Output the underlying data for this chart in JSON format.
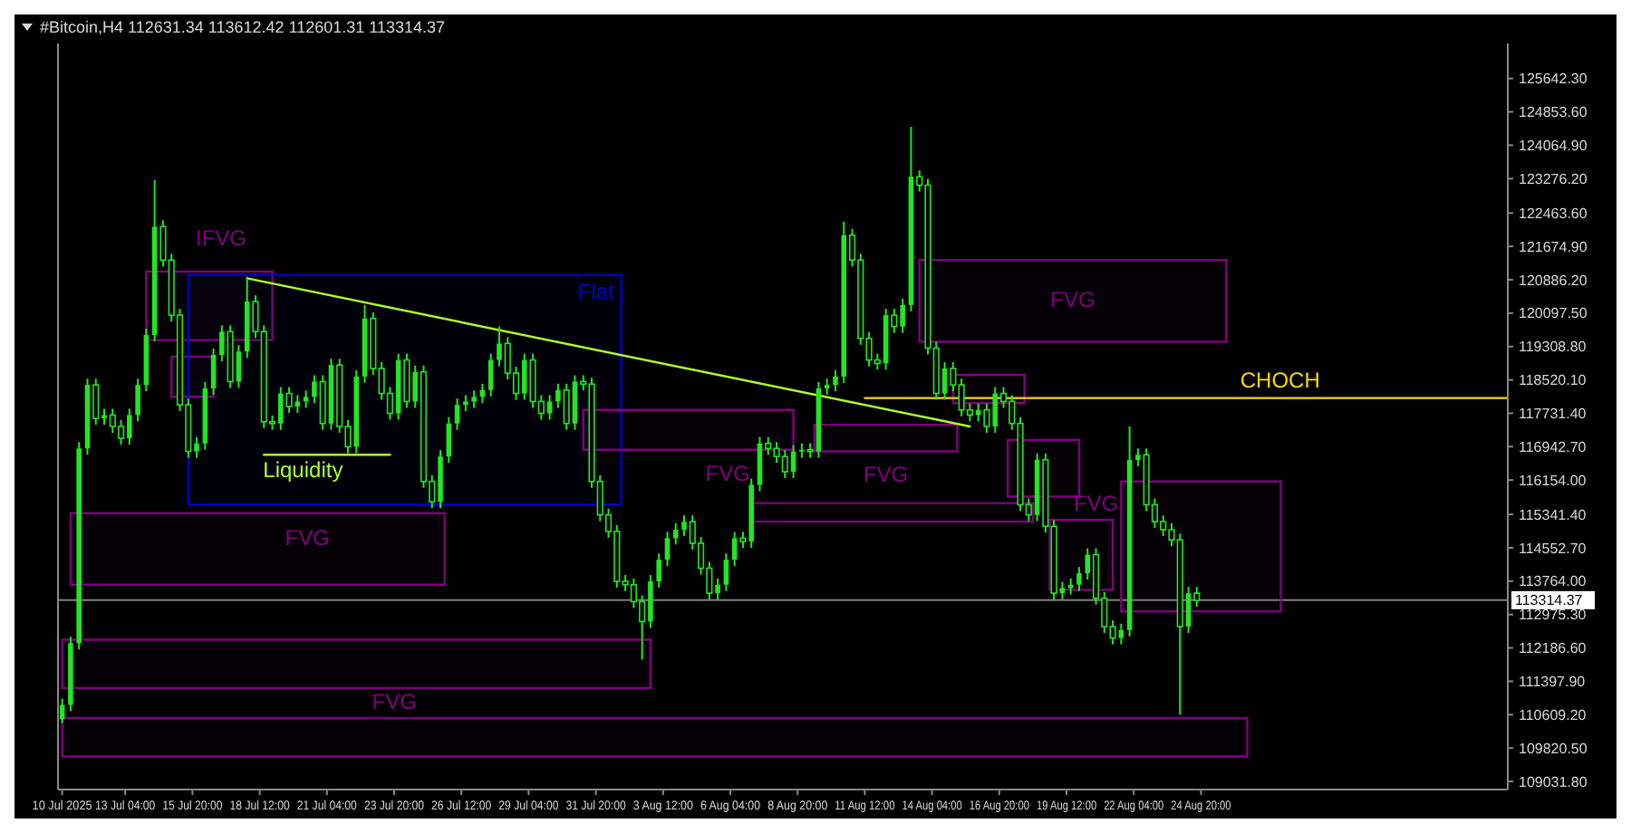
{
  "chart_data": {
    "type": "candlestick",
    "title": "#Bitcoin,H4  112631.34 113612.42 112601.31 113314.37",
    "color": "#22e622",
    "xlim": [
      "2025-07-10T12:00",
      "2025-09-06T00:00"
    ],
    "ylim": [
      108840,
      126470
    ],
    "xticks": [
      {
        "value": "2025-07-10T16:00",
        "label": "10 Jul 2025"
      },
      {
        "value": "2025-07-13T04:00",
        "label": "13 Jul 04:00"
      },
      {
        "value": "2025-07-15T20:00",
        "label": "15 Jul 20:00"
      },
      {
        "value": "2025-07-18T12:00",
        "label": "18 Jul 12:00"
      },
      {
        "value": "2025-07-21T04:00",
        "label": "21 Jul 04:00"
      },
      {
        "value": "2025-07-23T20:00",
        "label": "23 Jul 20:00"
      },
      {
        "value": "2025-07-26T12:00",
        "label": "26 Jul 12:00"
      },
      {
        "value": "2025-07-29T04:00",
        "label": "29 Jul 04:00"
      },
      {
        "value": "2025-07-31T20:00",
        "label": "31 Jul 20:00"
      },
      {
        "value": "2025-08-03T12:00",
        "label": "3 Aug 12:00"
      },
      {
        "value": "2025-08-06T04:00",
        "label": "6 Aug 04:00"
      },
      {
        "value": "2025-08-08T20:00",
        "label": "8 Aug 20:00"
      },
      {
        "value": "2025-08-11T12:00",
        "label": "11 Aug 12:00"
      },
      {
        "value": "2025-08-14T04:00",
        "label": "14 Aug 04:00"
      },
      {
        "value": "2025-08-16T20:00",
        "label": "16 Aug 20:00"
      },
      {
        "value": "2025-08-19T12:00",
        "label": "19 Aug 12:00"
      },
      {
        "value": "2025-08-22T04:00",
        "label": "22 Aug 04:00"
      },
      {
        "value": "2025-08-24T20:00",
        "label": "24 Aug 20:00"
      }
    ],
    "yticks": [
      {
        "value": 125642.3,
        "label": "125642.30"
      },
      {
        "value": 124853.6,
        "label": "124853.60"
      },
      {
        "value": 124064.9,
        "label": "124064.90"
      },
      {
        "value": 123276.2,
        "label": "123276.20"
      },
      {
        "value": 122463.6,
        "label": "122463.60"
      },
      {
        "value": 121674.9,
        "label": "121674.90"
      },
      {
        "value": 120886.2,
        "label": "120886.20"
      },
      {
        "value": 120097.5,
        "label": "120097.50"
      },
      {
        "value": 119308.8,
        "label": "119308.80"
      },
      {
        "value": 118520.1,
        "label": "118520.10"
      },
      {
        "value": 117731.4,
        "label": "117731.40"
      },
      {
        "value": 116942.7,
        "label": "116942.70"
      },
      {
        "value": 116154,
        "label": "116154.00"
      },
      {
        "value": 115341.4,
        "label": "115341.40"
      },
      {
        "value": 114552.7,
        "label": "114552.70"
      },
      {
        "value": 113764,
        "label": "113764.00"
      },
      {
        "value": 112975.3,
        "label": "112975.30"
      },
      {
        "value": 112186.6,
        "label": "112186.60"
      },
      {
        "value": 111397.9,
        "label": "111397.90"
      },
      {
        "value": 110609.2,
        "label": "110609.20"
      },
      {
        "value": 109820.5,
        "label": "109820.50"
      },
      {
        "value": 109031.8,
        "label": "109031.80"
      }
    ],
    "x": [
      "2025-07-10T16:00",
      "2025-07-11T00:00",
      "2025-07-11T08:00",
      "2025-07-11T16:00",
      "2025-07-12T00:00",
      "2025-07-12T08:00",
      "2025-07-12T16:00",
      "2025-07-13T00:00",
      "2025-07-13T08:00",
      "2025-07-13T16:00",
      "2025-07-14T00:00",
      "2025-07-14T08:00",
      "2025-07-14T16:00",
      "2025-07-15T00:00",
      "2025-07-15T08:00",
      "2025-07-15T16:00",
      "2025-07-16T00:00",
      "2025-07-16T08:00",
      "2025-07-16T16:00",
      "2025-07-17T00:00",
      "2025-07-17T08:00",
      "2025-07-17T16:00",
      "2025-07-18T00:00",
      "2025-07-18T08:00",
      "2025-07-18T16:00",
      "2025-07-19T00:00",
      "2025-07-19T08:00",
      "2025-07-19T16:00",
      "2025-07-20T00:00",
      "2025-07-20T08:00",
      "2025-07-20T16:00",
      "2025-07-21T00:00",
      "2025-07-21T08:00",
      "2025-07-21T16:00",
      "2025-07-22T00:00",
      "2025-07-22T08:00",
      "2025-07-22T16:00",
      "2025-07-23T00:00",
      "2025-07-23T08:00",
      "2025-07-23T16:00",
      "2025-07-24T00:00",
      "2025-07-24T08:00",
      "2025-07-24T16:00",
      "2025-07-25T00:00",
      "2025-07-25T08:00",
      "2025-07-25T16:00",
      "2025-07-26T00:00",
      "2025-07-26T08:00",
      "2025-07-26T16:00",
      "2025-07-27T00:00",
      "2025-07-27T08:00",
      "2025-07-27T16:00",
      "2025-07-28T00:00",
      "2025-07-28T08:00",
      "2025-07-28T16:00",
      "2025-07-29T00:00",
      "2025-07-29T08:00",
      "2025-07-29T16:00",
      "2025-07-30T00:00",
      "2025-07-30T08:00",
      "2025-07-30T16:00",
      "2025-07-31T00:00",
      "2025-07-31T08:00",
      "2025-07-31T16:00",
      "2025-08-01T00:00",
      "2025-08-01T08:00",
      "2025-08-01T16:00",
      "2025-08-02T00:00",
      "2025-08-02T08:00",
      "2025-08-02T16:00",
      "2025-08-03T00:00",
      "2025-08-03T08:00",
      "2025-08-03T16:00",
      "2025-08-04T00:00",
      "2025-08-04T08:00",
      "2025-08-04T16:00",
      "2025-08-05T00:00",
      "2025-08-05T08:00",
      "2025-08-05T16:00",
      "2025-08-06T00:00",
      "2025-08-06T08:00",
      "2025-08-06T16:00",
      "2025-08-07T00:00",
      "2025-08-07T08:00",
      "2025-08-07T16:00",
      "2025-08-08T00:00",
      "2025-08-08T08:00",
      "2025-08-08T16:00",
      "2025-08-09T00:00",
      "2025-08-09T08:00",
      "2025-08-09T16:00",
      "2025-08-10T00:00",
      "2025-08-10T08:00",
      "2025-08-10T16:00",
      "2025-08-11T00:00",
      "2025-08-11T08:00",
      "2025-08-11T16:00",
      "2025-08-12T00:00",
      "2025-08-12T08:00",
      "2025-08-12T16:00",
      "2025-08-13T00:00",
      "2025-08-13T08:00",
      "2025-08-13T16:00",
      "2025-08-14T00:00",
      "2025-08-14T08:00",
      "2025-08-14T16:00",
      "2025-08-15T00:00",
      "2025-08-15T08:00",
      "2025-08-15T16:00",
      "2025-08-16T00:00",
      "2025-08-16T08:00",
      "2025-08-16T16:00",
      "2025-08-17T00:00",
      "2025-08-17T08:00",
      "2025-08-17T16:00",
      "2025-08-18T00:00",
      "2025-08-18T08:00",
      "2025-08-18T16:00",
      "2025-08-19T00:00",
      "2025-08-19T08:00",
      "2025-08-19T16:00",
      "2025-08-20T00:00",
      "2025-08-20T08:00",
      "2025-08-20T16:00",
      "2025-08-21T00:00",
      "2025-08-21T08:00",
      "2025-08-21T16:00",
      "2025-08-22T00:00",
      "2025-08-22T08:00",
      "2025-08-22T16:00",
      "2025-08-23T00:00",
      "2025-08-23T08:00",
      "2025-08-23T16:00",
      "2025-08-24T00:00",
      "2025-08-24T08:00",
      "2025-08-24T16:00"
    ],
    "ohlc": [
      [
        110500,
        110990,
        110410,
        110840
      ],
      [
        110840,
        112450,
        110690,
        112300
      ],
      [
        112300,
        117050,
        112150,
        116900
      ],
      [
        116900,
        118550,
        116750,
        118400
      ],
      [
        118400,
        118550,
        117460,
        117610
      ],
      [
        117610,
        117840,
        117460,
        117690
      ],
      [
        117690,
        117840,
        117270,
        117420
      ],
      [
        117420,
        117570,
        116990,
        117140
      ],
      [
        117140,
        117840,
        116990,
        117690
      ],
      [
        117690,
        118550,
        117540,
        118400
      ],
      [
        118400,
        119730,
        118250,
        119580
      ],
      [
        119580,
        123240,
        119430,
        122140
      ],
      [
        122140,
        122290,
        121200,
        121350
      ],
      [
        121350,
        121500,
        119900,
        120050
      ],
      [
        120050,
        120200,
        117780,
        117930
      ],
      [
        117930,
        118080,
        116680,
        116830
      ],
      [
        116830,
        117170,
        116680,
        117020
      ],
      [
        117020,
        118470,
        116870,
        118320
      ],
      [
        118320,
        119260,
        118170,
        119110
      ],
      [
        119110,
        119810,
        118960,
        119660
      ],
      [
        119660,
        119810,
        118330,
        118480
      ],
      [
        118480,
        119340,
        118330,
        119190
      ],
      [
        119190,
        120960,
        119040,
        120370
      ],
      [
        120370,
        120520,
        119510,
        119660
      ],
      [
        119660,
        119810,
        117380,
        117530
      ],
      [
        117530,
        117680,
        117340,
        117490
      ],
      [
        117490,
        118350,
        117340,
        118200
      ],
      [
        118200,
        118350,
        117740,
        117890
      ],
      [
        117890,
        118160,
        117740,
        118010
      ],
      [
        118010,
        118270,
        117860,
        118120
      ],
      [
        118120,
        118630,
        117970,
        118480
      ],
      [
        118480,
        118630,
        117340,
        117490
      ],
      [
        117490,
        119020,
        117340,
        118870
      ],
      [
        118870,
        119020,
        117270,
        117420
      ],
      [
        117420,
        117570,
        116790,
        116940
      ],
      [
        116940,
        118750,
        116790,
        118600
      ],
      [
        118600,
        120290,
        118450,
        119970
      ],
      [
        119970,
        120120,
        118640,
        118790
      ],
      [
        118790,
        118940,
        118050,
        118200
      ],
      [
        118200,
        118350,
        117580,
        117730
      ],
      [
        117730,
        119140,
        117580,
        118990
      ],
      [
        118990,
        119140,
        117860,
        118010
      ],
      [
        118010,
        118860,
        117860,
        118710
      ],
      [
        118710,
        118860,
        115970,
        116120
      ],
      [
        116120,
        116270,
        115490,
        115640
      ],
      [
        115640,
        116860,
        115490,
        116710
      ],
      [
        116710,
        117640,
        116560,
        117490
      ],
      [
        117490,
        118080,
        117340,
        117930
      ],
      [
        117930,
        118160,
        117780,
        118010
      ],
      [
        118010,
        118270,
        117860,
        118120
      ],
      [
        118120,
        118430,
        117970,
        118280
      ],
      [
        118280,
        119140,
        118130,
        118990
      ],
      [
        118990,
        119780,
        118840,
        119380
      ],
      [
        119380,
        119530,
        118530,
        118680
      ],
      [
        118680,
        118830,
        118050,
        118200
      ],
      [
        118200,
        119140,
        118050,
        118990
      ],
      [
        118990,
        119140,
        117860,
        118010
      ],
      [
        118010,
        118160,
        117580,
        117730
      ],
      [
        117730,
        118160,
        117580,
        118010
      ],
      [
        118010,
        118430,
        117860,
        118280
      ],
      [
        118280,
        118430,
        117340,
        117490
      ],
      [
        117490,
        118630,
        117340,
        118480
      ],
      [
        118480,
        118630,
        118270,
        118420
      ],
      [
        118420,
        118570,
        115970,
        116120
      ],
      [
        116120,
        116270,
        115180,
        115330
      ],
      [
        115330,
        115480,
        114790,
        114940
      ],
      [
        114940,
        115090,
        113610,
        113760
      ],
      [
        113760,
        113910,
        113530,
        113680
      ],
      [
        113680,
        113830,
        113130,
        113280
      ],
      [
        113280,
        113430,
        111910,
        112810
      ],
      [
        112810,
        113910,
        112660,
        113760
      ],
      [
        113760,
        114420,
        113610,
        114270
      ],
      [
        114270,
        114930,
        114120,
        114780
      ],
      [
        114780,
        115130,
        114630,
        114980
      ],
      [
        114980,
        115320,
        114830,
        115170
      ],
      [
        115170,
        115320,
        114510,
        114660
      ],
      [
        114660,
        114810,
        113920,
        114070
      ],
      [
        114070,
        114220,
        113330,
        113480
      ],
      [
        113480,
        113830,
        113330,
        113680
      ],
      [
        113680,
        114420,
        113530,
        114270
      ],
      [
        114270,
        114930,
        114120,
        114780
      ],
      [
        114780,
        114930,
        114550,
        114700
      ],
      [
        114700,
        116190,
        114550,
        116040
      ],
      [
        116040,
        117170,
        115890,
        117020
      ],
      [
        117020,
        117170,
        116750,
        116900
      ],
      [
        116900,
        117050,
        116560,
        116710
      ],
      [
        116710,
        116860,
        116200,
        116350
      ],
      [
        116350,
        116980,
        116200,
        116830
      ],
      [
        116830,
        117020,
        116680,
        116870
      ],
      [
        116870,
        117020,
        116680,
        116830
      ],
      [
        116830,
        118470,
        116680,
        118320
      ],
      [
        118320,
        118550,
        118170,
        118400
      ],
      [
        118400,
        118750,
        118250,
        118600
      ],
      [
        118600,
        122260,
        118450,
        121940
      ],
      [
        121940,
        122090,
        121200,
        121350
      ],
      [
        121350,
        121500,
        119350,
        119500
      ],
      [
        119500,
        119650,
        118840,
        118990
      ],
      [
        118990,
        119140,
        118760,
        118910
      ],
      [
        118910,
        120200,
        118760,
        120050
      ],
      [
        120050,
        120200,
        119630,
        119780
      ],
      [
        119780,
        120440,
        119630,
        120290
      ],
      [
        120290,
        124500,
        120140,
        123320
      ],
      [
        123320,
        123470,
        122970,
        123120
      ],
      [
        123120,
        123270,
        119120,
        119270
      ],
      [
        119270,
        119420,
        118050,
        118200
      ],
      [
        118200,
        118940,
        118050,
        118790
      ],
      [
        118790,
        118940,
        118250,
        118400
      ],
      [
        118400,
        118550,
        117660,
        117810
      ],
      [
        117810,
        117960,
        117540,
        117690
      ],
      [
        117690,
        117960,
        117540,
        117810
      ],
      [
        117810,
        117960,
        117270,
        117420
      ],
      [
        117420,
        118350,
        117270,
        118200
      ],
      [
        118200,
        118350,
        117860,
        118010
      ],
      [
        118010,
        118160,
        117340,
        117490
      ],
      [
        117490,
        117640,
        115420,
        115570
      ],
      [
        115570,
        115720,
        115180,
        115330
      ],
      [
        115330,
        116780,
        115180,
        116630
      ],
      [
        116630,
        116780,
        114910,
        115060
      ],
      [
        115060,
        115210,
        113330,
        113480
      ],
      [
        113480,
        113750,
        113330,
        113600
      ],
      [
        113600,
        113830,
        113450,
        113680
      ],
      [
        113680,
        114100,
        113530,
        113950
      ],
      [
        113950,
        114540,
        113800,
        114390
      ],
      [
        114390,
        114540,
        113210,
        113360
      ],
      [
        113360,
        113510,
        112540,
        112690
      ],
      [
        112690,
        112840,
        112270,
        112420
      ],
      [
        112420,
        112760,
        112270,
        112610
      ],
      [
        112610,
        117420,
        112460,
        116630
      ],
      [
        116630,
        116900,
        116480,
        116750
      ],
      [
        116750,
        116900,
        115420,
        115570
      ],
      [
        115570,
        115720,
        115020,
        115170
      ],
      [
        115170,
        115320,
        114830,
        114980
      ],
      [
        114980,
        115130,
        114590,
        114740
      ],
      [
        114740,
        114890,
        110610,
        112690
      ],
      [
        112690,
        113630,
        112540,
        113480
      ],
      [
        113480,
        113630,
        113160,
        113310
      ]
    ],
    "series": [
      {
        "type": "line",
        "color": "#800080",
        "x": [
          "2025-07-14T00:00",
          "2025-07-19T00:00"
        ],
        "values": [
          null,
          null
        ],
        "lower": [
          119460,
          119460
        ],
        "upper": [
          121080,
          121080
        ]
      },
      {
        "type": "line",
        "color": "#800080",
        "x": [
          "2025-07-15T00:00",
          "2025-07-16T16:00"
        ],
        "values": [
          null,
          null
        ],
        "lower": [
          118120,
          118120
        ],
        "upper": [
          119070,
          119070
        ]
      },
      {
        "type": "line",
        "color": "#0000cc",
        "x": [
          "2025-07-15T16:00",
          "2025-08-01T20:00"
        ],
        "values": [
          null,
          null
        ],
        "lower": [
          115570,
          115570
        ],
        "upper": [
          121000,
          121000
        ]
      },
      {
        "type": "line",
        "color": "#800080",
        "x": [
          "2025-07-11T00:00",
          "2025-07-25T20:00"
        ],
        "values": [
          null,
          null
        ],
        "lower": [
          113680,
          113680
        ],
        "upper": [
          115370,
          115370
        ]
      },
      {
        "type": "line",
        "color": "#800080",
        "x": [
          "2025-07-10T16:00",
          "2025-08-03T00:00"
        ],
        "values": [
          null,
          null
        ],
        "lower": [
          111240,
          111240
        ],
        "upper": [
          112380,
          112380
        ]
      },
      {
        "type": "line",
        "color": "#800080",
        "x": [
          "2025-07-10T16:00",
          "2025-08-26T16:00"
        ],
        "values": [
          null,
          null
        ],
        "lower": [
          109620,
          109620
        ],
        "upper": [
          110530,
          110530
        ]
      },
      {
        "type": "line",
        "color": "#800080",
        "x": [
          "2025-07-31T08:00",
          "2025-08-08T16:00"
        ],
        "values": [
          null,
          null
        ],
        "lower": [
          116870,
          116870
        ],
        "upper": [
          117810,
          117810
        ]
      },
      {
        "type": "line",
        "color": "#800080",
        "x": [
          "2025-08-09T12:00",
          "2025-08-15T04:00"
        ],
        "values": [
          null,
          null
        ],
        "lower": [
          116830,
          116830
        ],
        "upper": [
          117460,
          117460
        ]
      },
      {
        "type": "line",
        "color": "#800080",
        "x": [
          "2025-08-07T00:00",
          "2025-08-18T04:00"
        ],
        "values": [
          null,
          null
        ],
        "lower": [
          115170,
          115170
        ],
        "upper": [
          115610,
          115610
        ]
      },
      {
        "type": "line",
        "color": "#800080",
        "x": [
          "2025-08-13T16:00",
          "2025-08-25T20:00"
        ],
        "values": [
          null,
          null
        ],
        "lower": [
          119420,
          119420
        ],
        "upper": [
          121350,
          121350
        ]
      },
      {
        "type": "line",
        "color": "#800080",
        "x": [
          "2025-08-15T00:00",
          "2025-08-17T20:00"
        ],
        "values": [
          null,
          null
        ],
        "lower": [
          117970,
          117970
        ],
        "upper": [
          118640,
          118640
        ]
      },
      {
        "type": "line",
        "color": "#800080",
        "x": [
          "2025-08-17T04:00",
          "2025-08-20T00:00"
        ],
        "values": [
          null,
          null
        ],
        "lower": [
          115760,
          115760
        ],
        "upper": [
          117100,
          117100
        ]
      },
      {
        "type": "line",
        "color": "#800080",
        "x": [
          "2025-08-18T20:00",
          "2025-08-21T08:00"
        ],
        "values": [
          null,
          null
        ],
        "lower": [
          113560,
          113560
        ],
        "upper": [
          115210,
          115210
        ]
      },
      {
        "type": "line",
        "color": "#800080",
        "x": [
          "2025-08-21T16:00",
          "2025-08-28T00:00"
        ],
        "values": [
          null,
          null
        ],
        "lower": [
          113050,
          113050
        ],
        "upper": [
          116120,
          116120
        ]
      },
      {
        "type": "line",
        "color": "#adff2f",
        "x": [
          "2025-07-18T00:00",
          "2025-08-15T16:00"
        ],
        "values": [
          120920,
          117420
        ]
      },
      {
        "type": "line",
        "color": "#adff2f",
        "x": [
          "2025-07-18T16:00",
          "2025-07-23T16:00"
        ],
        "values": [
          116750,
          116750
        ]
      },
      {
        "type": "line",
        "color": "#ffd700",
        "x": [
          "2025-08-11T12:00",
          "2025-09-06T00:00"
        ],
        "values": [
          118090,
          118090
        ]
      }
    ],
    "ref_lines": [
      {
        "axis": "y",
        "value": 113314.37,
        "label": "113314.37",
        "color": "#808080"
      }
    ],
    "annotations": [
      "IFVG",
      "Flat",
      "FVG",
      "FVG",
      "FVG",
      "FVG",
      "FVG",
      "FVG",
      "CHOCH",
      "Liquidity"
    ]
  }
}
